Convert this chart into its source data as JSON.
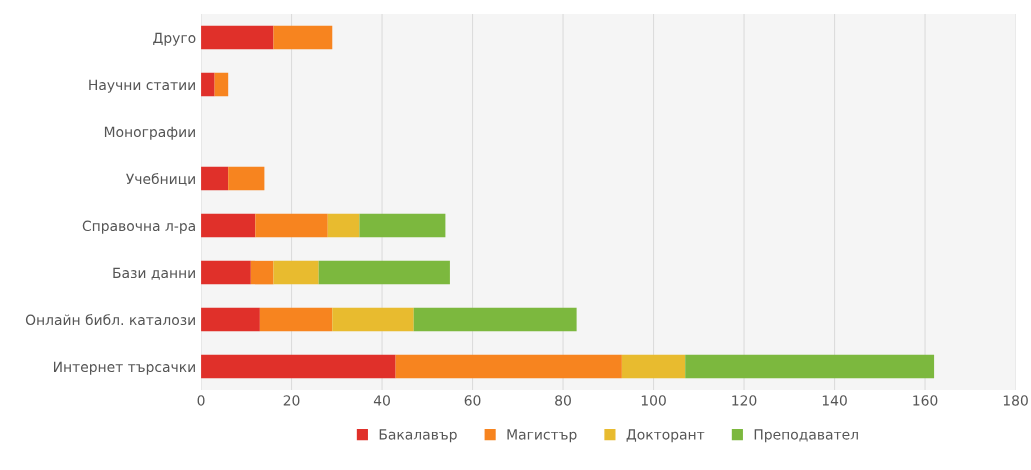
{
  "chart_data": {
    "type": "bar",
    "orientation": "horizontal",
    "stacked": true,
    "categories": [
      "Друго",
      "Научни статии",
      "Монографии",
      "Учебници",
      "Справочна л-ра",
      "Бази данни",
      "Онлайн библ. каталози",
      "Интернет търсачки"
    ],
    "series": [
      {
        "name": "Бакалавър",
        "color": "#e0302a",
        "values": [
          16,
          3,
          0,
          6,
          12,
          11,
          13,
          43
        ]
      },
      {
        "name": "Магистър",
        "color": "#f7841f",
        "values": [
          13,
          3,
          0,
          8,
          16,
          5,
          16,
          50
        ]
      },
      {
        "name": "Докторант",
        "color": "#e8bb2f",
        "values": [
          0,
          0,
          0,
          0,
          7,
          10,
          18,
          14
        ]
      },
      {
        "name": "Преподавател",
        "color": "#7cb83e",
        "values": [
          0,
          0,
          0,
          0,
          19,
          29,
          36,
          55
        ]
      }
    ],
    "xlim": [
      0,
      180
    ],
    "xticks": [
      0,
      20,
      40,
      60,
      80,
      100,
      120,
      140,
      160,
      180
    ],
    "grid": "x",
    "legend": "bottom"
  }
}
